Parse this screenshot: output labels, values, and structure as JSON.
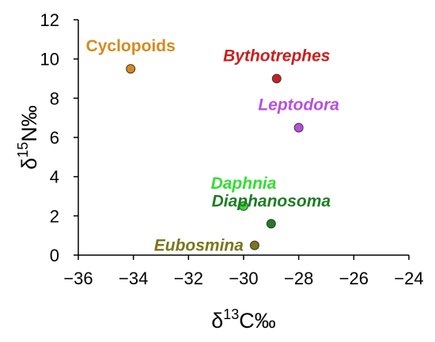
{
  "chart_data": {
    "type": "scatter",
    "title": "",
    "xlabel": {
      "prefix": "δ",
      "sup": "13",
      "rest": "C‰"
    },
    "ylabel": {
      "prefix": "δ",
      "sup": "15",
      "rest": "N‰"
    },
    "xlim": [
      -36,
      -24
    ],
    "ylim": [
      0,
      12
    ],
    "xticks": [
      -36,
      -34,
      -32,
      -30,
      -28,
      -26,
      -24
    ],
    "xtick_labels": [
      "−36",
      "−34",
      "−32",
      "−30",
      "−28",
      "−26",
      "−24"
    ],
    "yticks": [
      0,
      2,
      4,
      6,
      8,
      10,
      12
    ],
    "ytick_labels": [
      "0",
      "2",
      "4",
      "6",
      "8",
      "10",
      "12"
    ],
    "grid": false,
    "legend": "none",
    "points": [
      {
        "label": "Cyclopoids",
        "x": -34.1,
        "y": 9.5,
        "color": "#d68a1e",
        "label_color": "#d68a1e",
        "italic": false,
        "label_pos": "above"
      },
      {
        "label": "Bythotrephes",
        "x": -28.8,
        "y": 9.0,
        "color": "#c8201f",
        "label_color": "#c8201f",
        "italic": true,
        "label_pos": "above"
      },
      {
        "label": "Leptodora",
        "x": -28.0,
        "y": 6.5,
        "color": "#b84fe0",
        "label_color": "#b84fe0",
        "italic": true,
        "label_pos": "above"
      },
      {
        "label": "Daphnia",
        "x": -30.0,
        "y": 2.5,
        "color": "#33dd33",
        "label_color": "#33dd33",
        "italic": true,
        "label_pos": "above"
      },
      {
        "label": "Diaphanosoma",
        "x": -29.0,
        "y": 1.6,
        "color": "#1e7d24",
        "label_color": "#1e7d24",
        "italic": true,
        "label_pos": "above"
      },
      {
        "label": "Eubosmina",
        "x": -29.6,
        "y": 0.5,
        "color": "#7a7619",
        "label_color": "#7a7619",
        "italic": true,
        "label_pos": "left"
      }
    ]
  }
}
